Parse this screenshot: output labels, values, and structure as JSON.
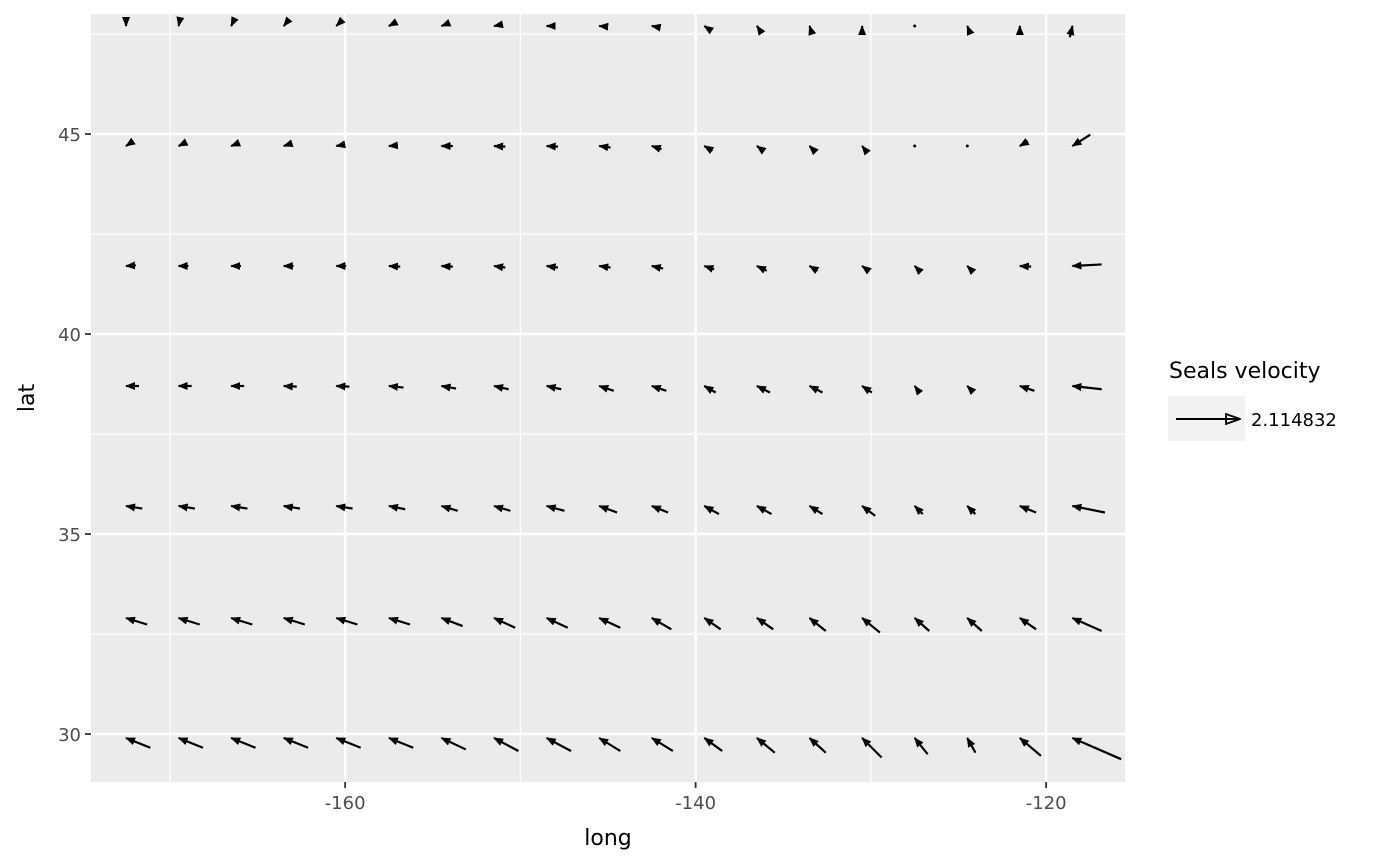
{
  "chart_data": {
    "type": "vector-field",
    "title": "",
    "xlabel": "long",
    "ylabel": "lat",
    "xlim": [
      -174.5,
      -115.5
    ],
    "ylim": [
      28.8,
      48.0
    ],
    "x_ticks": [
      -160,
      -140,
      -120
    ],
    "x_tick_labels": [
      "-160",
      "-140",
      "-120"
    ],
    "y_ticks": [
      30,
      35,
      40,
      45
    ],
    "y_tick_labels": [
      "30",
      "35",
      "40",
      "45"
    ],
    "grid": true,
    "legend": {
      "title": "Seals velocity",
      "label": "2.114832",
      "position": "right"
    },
    "colors": {
      "panel": "#ebebeb",
      "grid": "#ffffff",
      "arrow": "#000000",
      "legend_key": "#f2f2f2"
    },
    "long": [
      -172.5,
      -169.5,
      -166.5,
      -163.5,
      -160.5,
      -157.5,
      -154.5,
      -151.5,
      -148.5,
      -145.5,
      -142.5,
      -139.5,
      -136.5,
      -133.5,
      -130.5,
      -127.5,
      -124.5,
      -121.5,
      -118.5
    ],
    "lat": [
      29.9,
      32.9,
      35.7,
      38.7,
      41.7,
      44.7,
      47.7
    ],
    "vectors": [
      [
        [
          1.87,
          -0.75
        ],
        [
          1.87,
          -0.75
        ],
        [
          1.87,
          -0.75
        ],
        [
          1.87,
          -0.75
        ],
        [
          1.87,
          -0.75
        ],
        [
          1.87,
          -0.75
        ],
        [
          1.87,
          -0.88
        ],
        [
          1.87,
          -1.0
        ],
        [
          1.87,
          -1.0
        ],
        [
          1.62,
          -1.0
        ],
        [
          1.62,
          -1.0
        ],
        [
          1.37,
          -1.0
        ],
        [
          1.37,
          -1.13
        ],
        [
          1.25,
          -1.13
        ],
        [
          1.5,
          -1.5
        ],
        [
          1.0,
          -1.25
        ],
        [
          0.63,
          -1.13
        ],
        [
          1.62,
          -1.37
        ],
        [
          3.75,
          -1.63
        ]
      ],
      [
        [
          1.62,
          -0.5
        ],
        [
          1.62,
          -0.5
        ],
        [
          1.62,
          -0.5
        ],
        [
          1.62,
          -0.5
        ],
        [
          1.62,
          -0.5
        ],
        [
          1.62,
          -0.5
        ],
        [
          1.62,
          -0.62
        ],
        [
          1.62,
          -0.75
        ],
        [
          1.62,
          -0.75
        ],
        [
          1.62,
          -0.75
        ],
        [
          1.5,
          -0.87
        ],
        [
          1.25,
          -0.87
        ],
        [
          1.25,
          -0.87
        ],
        [
          1.25,
          -1.0
        ],
        [
          1.37,
          -1.12
        ],
        [
          1.12,
          -1.0
        ],
        [
          1.12,
          -1.0
        ],
        [
          1.25,
          -0.87
        ],
        [
          2.25,
          -1.0
        ]
      ],
      [
        [
          1.25,
          -0.2
        ],
        [
          1.25,
          -0.2
        ],
        [
          1.25,
          -0.2
        ],
        [
          1.25,
          -0.2
        ],
        [
          1.25,
          -0.2
        ],
        [
          1.25,
          -0.25
        ],
        [
          1.25,
          -0.37
        ],
        [
          1.25,
          -0.37
        ],
        [
          1.37,
          -0.37
        ],
        [
          1.37,
          -0.5
        ],
        [
          1.25,
          -0.5
        ],
        [
          1.12,
          -0.62
        ],
        [
          1.12,
          -0.62
        ],
        [
          1.0,
          -0.62
        ],
        [
          1.0,
          -0.75
        ],
        [
          0.62,
          -0.62
        ],
        [
          0.62,
          -0.62
        ],
        [
          1.25,
          -0.5
        ],
        [
          2.5,
          -0.5
        ]
      ],
      [
        [
          1.0,
          0.0
        ],
        [
          1.0,
          0.0
        ],
        [
          1.0,
          0.0
        ],
        [
          1.0,
          -0.05
        ],
        [
          1.0,
          -0.05
        ],
        [
          1.12,
          -0.12
        ],
        [
          1.12,
          -0.2
        ],
        [
          1.12,
          -0.25
        ],
        [
          1.12,
          -0.25
        ],
        [
          1.12,
          -0.37
        ],
        [
          1.12,
          -0.37
        ],
        [
          0.87,
          -0.5
        ],
        [
          1.0,
          -0.5
        ],
        [
          1.0,
          -0.5
        ],
        [
          0.75,
          -0.5
        ],
        [
          0.37,
          -0.5
        ],
        [
          0.37,
          -0.37
        ],
        [
          1.12,
          -0.37
        ],
        [
          2.25,
          -0.25
        ]
      ],
      [
        [
          0.75,
          0.05
        ],
        [
          0.75,
          0.0
        ],
        [
          0.75,
          0.0
        ],
        [
          0.75,
          0.0
        ],
        [
          0.75,
          0.0
        ],
        [
          0.87,
          -0.05
        ],
        [
          0.87,
          -0.05
        ],
        [
          0.87,
          -0.12
        ],
        [
          0.87,
          -0.12
        ],
        [
          0.87,
          -0.12
        ],
        [
          0.87,
          -0.2
        ],
        [
          0.75,
          -0.25
        ],
        [
          0.75,
          -0.37
        ],
        [
          0.62,
          -0.37
        ],
        [
          0.5,
          -0.37
        ],
        [
          0.25,
          -0.25
        ],
        [
          0.25,
          -0.25
        ],
        [
          0.87,
          -0.05
        ],
        [
          2.25,
          0.12
        ]
      ],
      [
        [
          0.37,
          0.25
        ],
        [
          0.5,
          0.25
        ],
        [
          0.5,
          0.2
        ],
        [
          0.62,
          0.2
        ],
        [
          0.62,
          0.12
        ],
        [
          0.62,
          0.05
        ],
        [
          0.87,
          0.0
        ],
        [
          0.87,
          -0.05
        ],
        [
          0.87,
          -0.05
        ],
        [
          0.87,
          -0.12
        ],
        [
          0.75,
          -0.25
        ],
        [
          0.62,
          -0.37
        ],
        [
          0.5,
          -0.37
        ],
        [
          0.37,
          -0.37
        ],
        [
          0.2,
          -0.25
        ],
        [
          0.0,
          0.0
        ],
        [
          0.0,
          0.0
        ],
        [
          0.62,
          0.37
        ],
        [
          1.37,
          0.87
        ]
      ],
      [
        [
          0.0,
          0.25
        ],
        [
          0.05,
          0.25
        ],
        [
          0.12,
          0.25
        ],
        [
          0.2,
          0.25
        ],
        [
          0.25,
          0.25
        ],
        [
          0.37,
          0.2
        ],
        [
          0.5,
          0.2
        ],
        [
          0.62,
          0.12
        ],
        [
          0.62,
          0.0
        ],
        [
          0.62,
          -0.05
        ],
        [
          0.62,
          -0.12
        ],
        [
          0.37,
          -0.25
        ],
        [
          0.25,
          -0.37
        ],
        [
          0.12,
          -0.37
        ],
        [
          0.0,
          -0.12
        ],
        [
          0.0,
          0.0
        ],
        [
          0.05,
          -0.12
        ],
        [
          0.0,
          -0.37
        ],
        [
          -0.2,
          -0.87
        ]
      ]
    ]
  }
}
